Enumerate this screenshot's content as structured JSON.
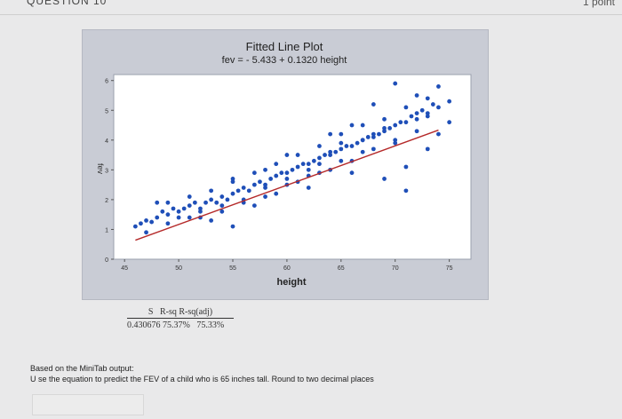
{
  "header": {
    "question_label": "QUESTION 10",
    "points_label": "1 point"
  },
  "chart_data": {
    "type": "scatter",
    "title": "Fitted Line Plot",
    "subtitle": "fev = - 5.433 + 0.1320 height",
    "xlabel": "height",
    "ylabel": "fev",
    "xlim": [
      44,
      77
    ],
    "ylim": [
      0,
      6.2
    ],
    "xticks": [
      45,
      50,
      55,
      60,
      65,
      70,
      75
    ],
    "yticks": [
      0,
      1,
      2,
      3,
      4,
      5,
      6
    ],
    "grid": false,
    "fitted_line": {
      "intercept": -5.433,
      "slope": 0.132,
      "x_range": [
        46,
        74
      ]
    },
    "colors": {
      "points": "#1f4fb8",
      "fit_line": "#b52a2a",
      "plot_bg": "#ffffff"
    },
    "summary": {
      "headers": [
        "S",
        "R-sq",
        "R-sq(adj)"
      ],
      "values": [
        "0.430676",
        "75.37%",
        "75.33%"
      ]
    },
    "points": [
      [
        46,
        1.1
      ],
      [
        46.5,
        1.2
      ],
      [
        47,
        1.3
      ],
      [
        47.5,
        1.25
      ],
      [
        48,
        1.4
      ],
      [
        48.5,
        1.6
      ],
      [
        49,
        1.5
      ],
      [
        49.5,
        1.7
      ],
      [
        50,
        1.6
      ],
      [
        50.5,
        1.7
      ],
      [
        51,
        1.8
      ],
      [
        51.5,
        1.9
      ],
      [
        52,
        1.7
      ],
      [
        52.5,
        1.9
      ],
      [
        53,
        2.0
      ],
      [
        53.5,
        1.9
      ],
      [
        54,
        2.1
      ],
      [
        54.5,
        2.0
      ],
      [
        55,
        2.2
      ],
      [
        55.5,
        2.3
      ],
      [
        56,
        2.4
      ],
      [
        56.5,
        2.3
      ],
      [
        57,
        2.5
      ],
      [
        57.5,
        2.6
      ],
      [
        58,
        2.5
      ],
      [
        58.5,
        2.7
      ],
      [
        59,
        2.8
      ],
      [
        59.5,
        2.9
      ],
      [
        60,
        2.9
      ],
      [
        60.5,
        3.0
      ],
      [
        61,
        3.1
      ],
      [
        61.5,
        3.2
      ],
      [
        62,
        3.2
      ],
      [
        62.5,
        3.3
      ],
      [
        63,
        3.4
      ],
      [
        63.5,
        3.5
      ],
      [
        64,
        3.5
      ],
      [
        64.5,
        3.6
      ],
      [
        65,
        3.7
      ],
      [
        65.5,
        3.8
      ],
      [
        66,
        3.8
      ],
      [
        66.5,
        3.9
      ],
      [
        67,
        4.0
      ],
      [
        67.5,
        4.1
      ],
      [
        68,
        4.2
      ],
      [
        68.5,
        4.2
      ],
      [
        69,
        4.3
      ],
      [
        69.5,
        4.4
      ],
      [
        70,
        4.5
      ],
      [
        70.5,
        4.6
      ],
      [
        71,
        4.6
      ],
      [
        71.5,
        4.8
      ],
      [
        72,
        4.9
      ],
      [
        72.5,
        5.0
      ],
      [
        73,
        4.9
      ],
      [
        73.5,
        5.2
      ],
      [
        74,
        5.1
      ],
      [
        48,
        1.9
      ],
      [
        49,
        1.2
      ],
      [
        51,
        2.1
      ],
      [
        52,
        1.4
      ],
      [
        53,
        2.3
      ],
      [
        54,
        1.6
      ],
      [
        55,
        2.6
      ],
      [
        56,
        1.9
      ],
      [
        57,
        2.9
      ],
      [
        58,
        2.1
      ],
      [
        59,
        3.2
      ],
      [
        60,
        2.5
      ],
      [
        61,
        3.5
      ],
      [
        62,
        2.8
      ],
      [
        63,
        3.8
      ],
      [
        64,
        3.0
      ],
      [
        65,
        4.2
      ],
      [
        66,
        3.3
      ],
      [
        67,
        4.5
      ],
      [
        68,
        3.7
      ],
      [
        69,
        4.7
      ],
      [
        70,
        4.0
      ],
      [
        71,
        5.1
      ],
      [
        72,
        4.3
      ],
      [
        73,
        5.4
      ],
      [
        74,
        4.2
      ],
      [
        70,
        5.9
      ],
      [
        72,
        5.5
      ],
      [
        74,
        5.8
      ],
      [
        71,
        2.3
      ],
      [
        69,
        2.7
      ],
      [
        66,
        2.9
      ],
      [
        62,
        2.4
      ],
      [
        58,
        3.0
      ],
      [
        53,
        1.3
      ],
      [
        50,
        1.4
      ],
      [
        55,
        2.7
      ],
      [
        57,
        1.8
      ],
      [
        60,
        3.5
      ],
      [
        64,
        4.2
      ],
      [
        66,
        4.5
      ],
      [
        68,
        5.2
      ],
      [
        71,
        3.1
      ],
      [
        73,
        3.7
      ],
      [
        75,
        4.6
      ],
      [
        75,
        5.3
      ],
      [
        56,
        2.0
      ],
      [
        58,
        2.4
      ],
      [
        60,
        2.7
      ],
      [
        62,
        3.0
      ],
      [
        63,
        3.2
      ],
      [
        64,
        3.6
      ],
      [
        65,
        3.9
      ],
      [
        67,
        4.0
      ],
      [
        68,
        4.1
      ],
      [
        69,
        4.4
      ],
      [
        72,
        4.7
      ],
      [
        73,
        4.8
      ],
      [
        52,
        1.6
      ],
      [
        54,
        1.8
      ],
      [
        47,
        0.9
      ],
      [
        49,
        1.9
      ],
      [
        51,
        1.4
      ],
      [
        55,
        1.1
      ],
      [
        59,
        2.2
      ],
      [
        61,
        2.6
      ],
      [
        63,
        2.9
      ],
      [
        65,
        3.3
      ],
      [
        67,
        3.6
      ],
      [
        70,
        3.9
      ]
    ]
  },
  "question": {
    "line1": "Based on the MiniTab output:",
    "line2": "U se the equation to predict the FEV of a child who is 65 inches tall. Round to two decimal places"
  },
  "answer": {
    "value": ""
  }
}
